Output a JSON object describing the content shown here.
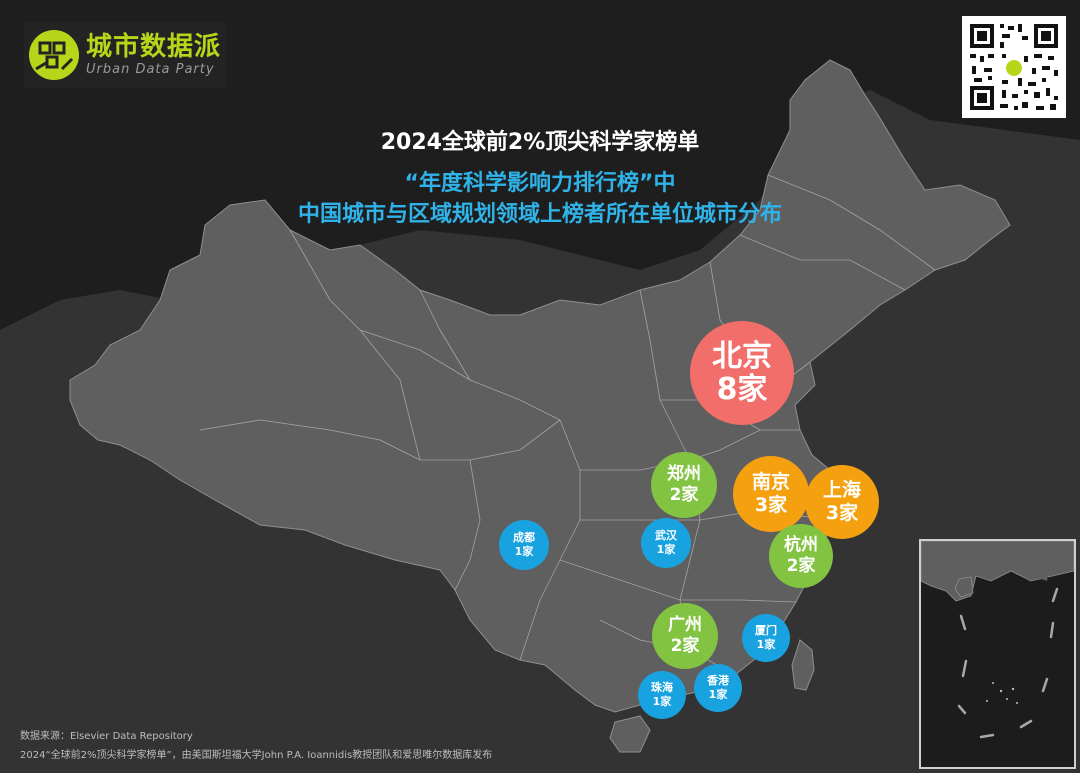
{
  "logo": {
    "name_cn": "城市数据派",
    "name_en": "Urban Data Party",
    "accent": "#b7d61a"
  },
  "title": "2024全球前2%顶尖科学家榜单",
  "subtitle_line1": "“年度科学影响力排行榜”中",
  "subtitle_line2": "中国城市与区域规划领域上榜者所在单位城市分布",
  "colors": {
    "background": "#1e1e1e",
    "land": "#5f5f5f",
    "borders": "#9c9c9c",
    "title": "#ffffff",
    "subtitle": "#2fb3e8"
  },
  "cities": [
    {
      "name": "北京",
      "count": "8家",
      "color": "#f16e6a",
      "value": 8
    },
    {
      "name": "南京",
      "count": "3家",
      "color": "#f5a10f",
      "value": 3
    },
    {
      "name": "上海",
      "count": "3家",
      "color": "#f5a10f",
      "value": 3
    },
    {
      "name": "郑州",
      "count": "2家",
      "color": "#82c341",
      "value": 2
    },
    {
      "name": "杭州",
      "count": "2家",
      "color": "#82c341",
      "value": 2
    },
    {
      "name": "广州",
      "count": "2家",
      "color": "#82c341",
      "value": 2
    },
    {
      "name": "成都",
      "count": "1家",
      "color": "#18a3e0",
      "value": 1
    },
    {
      "name": "武汉",
      "count": "1家",
      "color": "#18a3e0",
      "value": 1
    },
    {
      "name": "厦门",
      "count": "1家",
      "color": "#18a3e0",
      "value": 1
    },
    {
      "name": "珠海",
      "count": "1家",
      "color": "#18a3e0",
      "value": 1
    },
    {
      "name": "香港",
      "count": "1家",
      "color": "#18a3e0",
      "value": 1
    }
  ],
  "footer": {
    "source": "数据来源：Elsevier Data Repository",
    "note": "2024“全球前2%顶尖科学家榜单”，由美国斯坦福大学John P.A. Ioannidis教授团队和爱思唯尔数据库发布"
  }
}
